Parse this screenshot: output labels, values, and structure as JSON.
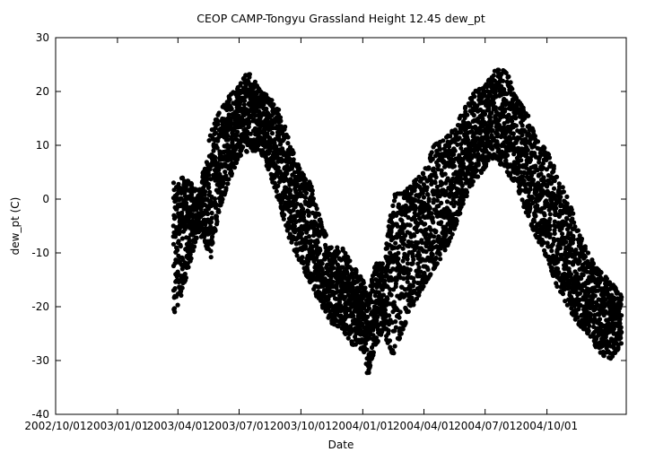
{
  "chart_data": {
    "type": "scatter",
    "title": "CEOP CAMP-Tongyu Grassland Height 12.45 dew_pt",
    "xlabel": "Date",
    "ylabel": "dew_pt (C)",
    "x_range": [
      "2002/10/01",
      "2005/01/27"
    ],
    "xticks": [
      "2002/10/01",
      "2003/01/01",
      "2003/04/01",
      "2003/07/01",
      "2003/10/01",
      "2004/01/01",
      "2004/04/01",
      "2004/07/01",
      "2004/10/01"
    ],
    "ylim": [
      -40,
      30
    ],
    "yticks": [
      30,
      20,
      10,
      0,
      -10,
      -20,
      -30,
      -40
    ],
    "grid": false,
    "marker_color": "#000000",
    "envelope": {
      "description": "daily range of dew point readings (approx.)",
      "points": [
        {
          "x": "2003/03/25",
          "low": -22,
          "high": 3
        },
        {
          "x": "2003/04/08",
          "low": -17,
          "high": 4
        },
        {
          "x": "2003/05/01",
          "low": -6,
          "high": 2
        },
        {
          "x": "2003/05/10",
          "low": -8,
          "high": 6
        },
        {
          "x": "2003/05/20",
          "low": -11,
          "high": 13
        },
        {
          "x": "2003/06/01",
          "low": -2,
          "high": 16
        },
        {
          "x": "2003/06/15",
          "low": 3,
          "high": 19
        },
        {
          "x": "2003/07/01",
          "low": 8,
          "high": 21
        },
        {
          "x": "2003/07/15",
          "low": 9,
          "high": 24
        },
        {
          "x": "2003/08/01",
          "low": 9,
          "high": 20
        },
        {
          "x": "2003/08/15",
          "low": 5,
          "high": 19
        },
        {
          "x": "2003/09/01",
          "low": -2,
          "high": 16
        },
        {
          "x": "2003/09/15",
          "low": -8,
          "high": 10
        },
        {
          "x": "2003/10/01",
          "low": -12,
          "high": 5
        },
        {
          "x": "2003/10/15",
          "low": -16,
          "high": 3
        },
        {
          "x": "2003/11/01",
          "low": -20,
          "high": -5
        },
        {
          "x": "2003/11/15",
          "low": -23,
          "high": -9
        },
        {
          "x": "2003/12/01",
          "low": -24,
          "high": -9
        },
        {
          "x": "2003/12/15",
          "low": -27,
          "high": -12
        },
        {
          "x": "2004/01/01",
          "low": -28,
          "high": -15
        },
        {
          "x": "2004/01/08",
          "low": -33,
          "high": -18
        },
        {
          "x": "2004/01/20",
          "low": -27,
          "high": -12
        },
        {
          "x": "2004/02/01",
          "low": -25,
          "high": -12
        },
        {
          "x": "2004/02/15",
          "low": -29,
          "high": 1
        },
        {
          "x": "2004/03/01",
          "low": -24,
          "high": 1
        },
        {
          "x": "2004/03/15",
          "low": -20,
          "high": 3
        },
        {
          "x": "2004/04/01",
          "low": -16,
          "high": 5
        },
        {
          "x": "2004/04/15",
          "low": -13,
          "high": 10
        },
        {
          "x": "2004/05/01",
          "low": -10,
          "high": 11
        },
        {
          "x": "2004/05/15",
          "low": -6,
          "high": 13
        },
        {
          "x": "2004/06/01",
          "low": 0,
          "high": 17
        },
        {
          "x": "2004/06/15",
          "low": 3,
          "high": 20
        },
        {
          "x": "2004/07/01",
          "low": 6,
          "high": 21
        },
        {
          "x": "2004/07/15",
          "low": 8,
          "high": 24
        },
        {
          "x": "2004/08/01",
          "low": 5,
          "high": 24
        },
        {
          "x": "2004/08/15",
          "low": 3,
          "high": 19
        },
        {
          "x": "2004/09/01",
          "low": -3,
          "high": 16
        },
        {
          "x": "2004/09/15",
          "low": -7,
          "high": 11
        },
        {
          "x": "2004/10/01",
          "low": -11,
          "high": 9
        },
        {
          "x": "2004/10/15",
          "low": -16,
          "high": 5
        },
        {
          "x": "2004/11/01",
          "low": -20,
          "high": 0
        },
        {
          "x": "2004/11/15",
          "low": -23,
          "high": -5
        },
        {
          "x": "2004/12/01",
          "low": -25,
          "high": -10
        },
        {
          "x": "2004/12/15",
          "low": -28,
          "high": -13
        },
        {
          "x": "2005/01/01",
          "low": -30,
          "high": -15
        },
        {
          "x": "2005/01/20",
          "low": -27,
          "high": -18
        }
      ]
    }
  }
}
